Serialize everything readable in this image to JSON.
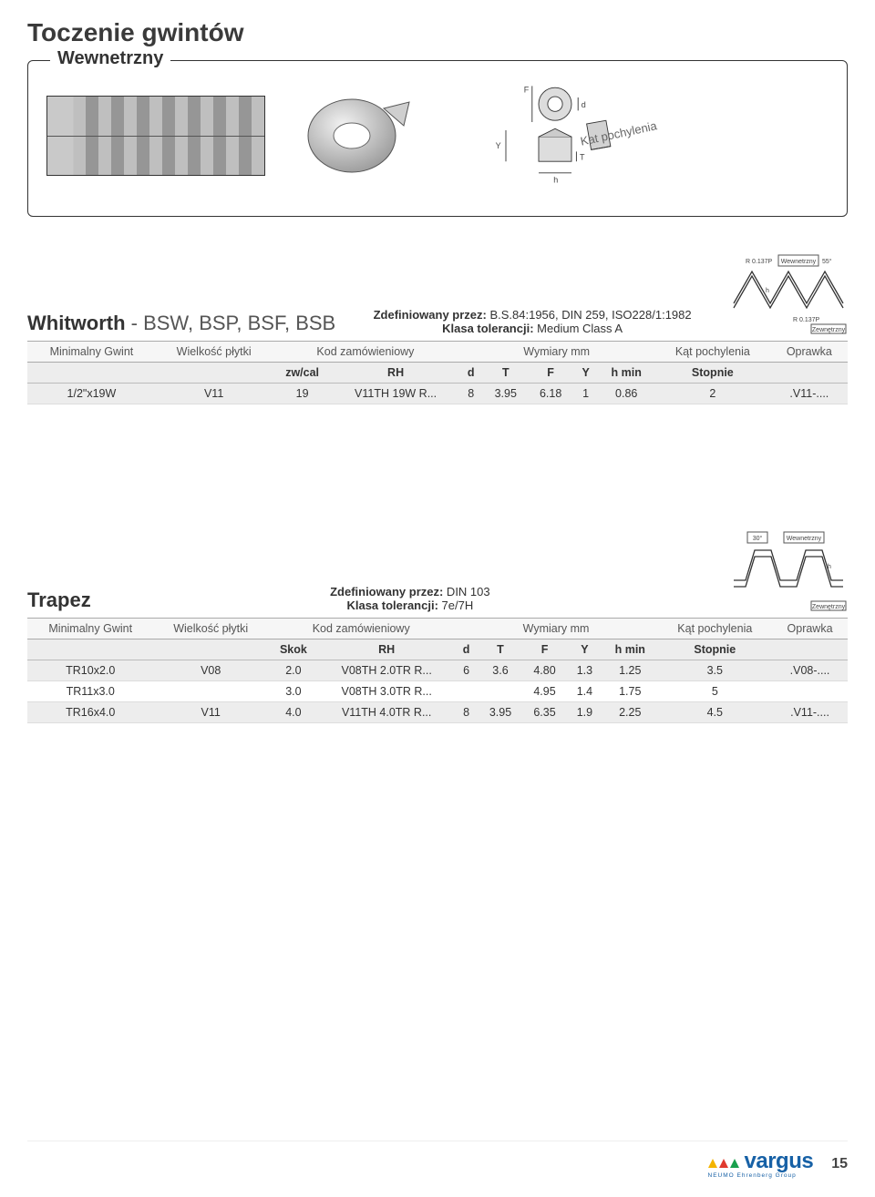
{
  "page": {
    "title": "Toczenie gwintów",
    "panel_label": "Wewnetrzny",
    "tilt_label": "Kat pochylenia",
    "page_number": "15",
    "logo_text": "vargus",
    "logo_sub": "NEUMO Ehrenberg Group"
  },
  "dim_labels": {
    "F": "F",
    "d": "d",
    "Y": "Y",
    "T": "T",
    "h": "h"
  },
  "profile1": {
    "r_top": "R 0.137P",
    "angle": "55°",
    "inner": "Wewnetrzny",
    "outer": "Zewnętrzny",
    "r_bot": "R 0.137P",
    "h": "h"
  },
  "profile2": {
    "angle": "30°",
    "inner": "Wewnetrzny",
    "outer": "Zewnętrzny",
    "h": "h"
  },
  "whitworth": {
    "name_bold": "Whitworth",
    "name_light": " - BSW, BSP, BSF, BSB",
    "def_label": "Zdefiniowany przez:",
    "def_value": " B.S.84:1956, DIN 259, ISO228/1:1982",
    "tol_label": "Klasa tolerancji:",
    "tol_value": " Medium Class A",
    "group_headers": [
      "Minimalny Gwint",
      "Wielkość płytki",
      "Kod zamówieniowy",
      "Wymiary mm",
      "Kąt pochylenia",
      "Oprawka"
    ],
    "unit_headers": [
      "",
      "",
      "zw/cal",
      "RH",
      "d",
      "T",
      "F",
      "Y",
      "h min",
      "Stopnie",
      ""
    ],
    "row": [
      "1/2\"x19W",
      "V11",
      "19",
      "V11TH 19W R...",
      "8",
      "3.95",
      "6.18",
      "1",
      "0.86",
      "2",
      ".V11-...."
    ]
  },
  "trapez": {
    "name_bold": "Trapez",
    "def_label": "Zdefiniowany przez:",
    "def_value": " DIN 103",
    "tol_label": "Klasa tolerancji:",
    "tol_value": " 7e/7H",
    "group_headers": [
      "Minimalny Gwint",
      "Wielkość płytki",
      "Kod zamówieniowy",
      "Wymiary mm",
      "Kąt pochylenia",
      "Oprawka"
    ],
    "unit_headers": [
      "",
      "",
      "Skok",
      "RH",
      "d",
      "T",
      "F",
      "Y",
      "h min",
      "Stopnie",
      ""
    ],
    "rows": [
      [
        "TR10x2.0",
        "V08",
        "2.0",
        "V08TH 2.0TR R...",
        "6",
        "3.6",
        "4.80",
        "1.3",
        "1.25",
        "3.5",
        ".V08-...."
      ],
      [
        "TR11x3.0",
        "",
        "3.0",
        "V08TH 3.0TR R...",
        "",
        "",
        "4.95",
        "1.4",
        "1.75",
        "5",
        ""
      ],
      [
        "TR16x4.0",
        "V11",
        "4.0",
        "V11TH 4.0TR R...",
        "8",
        "3.95",
        "6.35",
        "1.9",
        "2.25",
        "4.5",
        ".V11-...."
      ]
    ]
  },
  "colors": {
    "header_band": "#ededed",
    "rule": "#aaaaaa",
    "text": "#333333",
    "logo_blue": "#1761a6"
  }
}
